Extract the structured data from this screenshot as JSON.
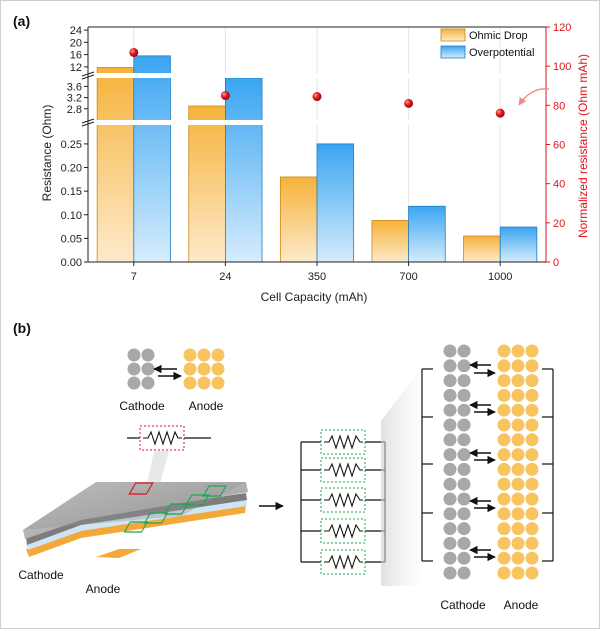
{
  "panel_labels": {
    "a": "(a)",
    "b": "(b)"
  },
  "chart_data": {
    "type": "bar",
    "categories": [
      "7",
      "24",
      "350",
      "700",
      "1000"
    ],
    "series": [
      {
        "name": "Ohmic Drop",
        "values": [
          11.8,
          2.9,
          0.18,
          0.088,
          0.055
        ],
        "color": "#f7b944"
      },
      {
        "name": "Overpotential",
        "values": [
          15.6,
          4.0,
          0.25,
          0.118,
          0.074
        ],
        "color": "#3aa5f2"
      },
      {
        "name": "",
        "axis": "right",
        "values": [
          107,
          85,
          84.5,
          81,
          76
        ],
        "color": "#e3121b",
        "marker": "sphere"
      }
    ],
    "xlabel": "Cell Capacity (mAh)",
    "ylabel": "Resistance (Ohm)",
    "ylabel_right": "Normalized resistance (Ohm mAh)",
    "y_segments": [
      {
        "range": [
          0,
          0.29
        ],
        "ticks": [
          "0.00",
          "0.05",
          "0.10",
          "0.15",
          "0.20",
          "0.25"
        ]
      },
      {
        "range": [
          2.4,
          3.9
        ],
        "ticks": [
          "2.8",
          "3.2",
          "3.6"
        ]
      },
      {
        "range": [
          10,
          25
        ],
        "ticks": [
          "12",
          "16",
          "20",
          "24"
        ]
      }
    ],
    "y_right": {
      "range": [
        0,
        120
      ],
      "ticks": [
        "0",
        "20",
        "40",
        "60",
        "80",
        "100",
        "120"
      ]
    },
    "legend_position": "top-right",
    "grid": false
  },
  "diagram": {
    "cathode": "Cathode",
    "anode": "Anode",
    "resistor_count": 5,
    "color_cathode": "#a8a8a8",
    "color_anode": "#f7c460",
    "color_outline_red": "#e3121b",
    "color_outline_green": "#1aa84a"
  }
}
